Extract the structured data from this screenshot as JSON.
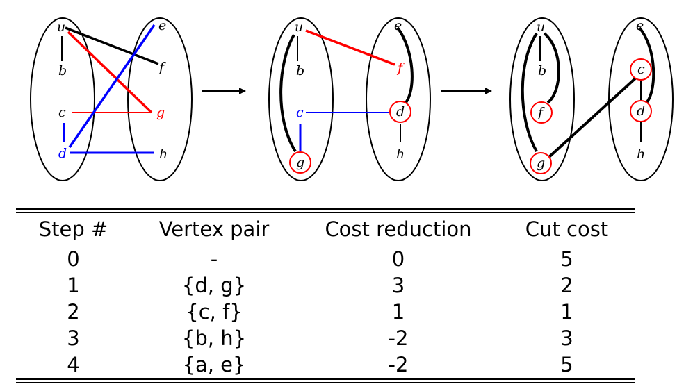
{
  "colors": {
    "black": "#000000",
    "red": "#ff0000",
    "blue": "#0000ff"
  },
  "panels": [
    {
      "vertices": [
        {
          "id": "u",
          "label": "u",
          "color": "black",
          "circled": false
        },
        {
          "id": "b",
          "label": "b",
          "color": "black",
          "circled": false
        },
        {
          "id": "c",
          "label": "c",
          "color": "black",
          "circled": false
        },
        {
          "id": "d",
          "label": "d",
          "color": "blue",
          "circled": false
        },
        {
          "id": "e",
          "label": "e",
          "color": "black",
          "circled": false
        },
        {
          "id": "f",
          "label": "f",
          "color": "black",
          "circled": false
        },
        {
          "id": "g",
          "label": "g",
          "color": "red",
          "circled": false
        },
        {
          "id": "h",
          "label": "h",
          "color": "black",
          "circled": false
        }
      ]
    },
    {
      "vertices": [
        {
          "id": "u",
          "label": "u",
          "color": "black",
          "circled": false
        },
        {
          "id": "b",
          "label": "b",
          "color": "black",
          "circled": false
        },
        {
          "id": "c",
          "label": "c",
          "color": "blue",
          "circled": false
        },
        {
          "id": "g",
          "label": "g",
          "color": "black",
          "circled": true
        },
        {
          "id": "e",
          "label": "e",
          "color": "black",
          "circled": false
        },
        {
          "id": "f",
          "label": "f",
          "color": "red",
          "circled": false
        },
        {
          "id": "d",
          "label": "d",
          "color": "black",
          "circled": true
        },
        {
          "id": "h",
          "label": "h",
          "color": "black",
          "circled": false
        }
      ]
    },
    {
      "vertices": [
        {
          "id": "u",
          "label": "u",
          "color": "black",
          "circled": false
        },
        {
          "id": "b",
          "label": "b",
          "color": "black",
          "circled": false
        },
        {
          "id": "f",
          "label": "f",
          "color": "black",
          "circled": true
        },
        {
          "id": "g",
          "label": "g",
          "color": "black",
          "circled": true
        },
        {
          "id": "e",
          "label": "e",
          "color": "black",
          "circled": false
        },
        {
          "id": "c",
          "label": "c",
          "color": "black",
          "circled": true
        },
        {
          "id": "d",
          "label": "d",
          "color": "black",
          "circled": true
        },
        {
          "id": "h",
          "label": "h",
          "color": "black",
          "circled": false
        }
      ]
    }
  ],
  "table": {
    "headers": [
      "Step #",
      "Vertex pair",
      "Cost reduction",
      "Cut cost"
    ],
    "rows": [
      [
        "0",
        "-",
        "0",
        "5"
      ],
      [
        "1",
        "{d, g}",
        "3",
        "2"
      ],
      [
        "2",
        "{c, f}",
        "1",
        "1"
      ],
      [
        "3",
        "{b, h}",
        "-2",
        "3"
      ],
      [
        "4",
        "{a, e}",
        "-2",
        "5"
      ]
    ]
  }
}
